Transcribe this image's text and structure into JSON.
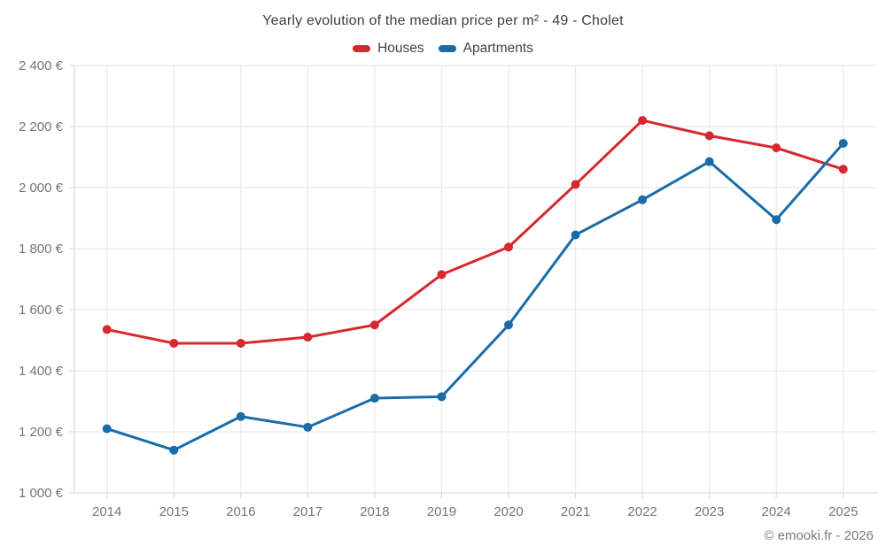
{
  "title": "Yearly evolution of the median price per m² - 49 - Cholet",
  "footer": "© emooki.fr - 2026",
  "colors": {
    "houses": "#d7282d",
    "apartments": "#1a6ca8",
    "grid": "#ebebeb",
    "axis": "#dcdcdc",
    "tick_label": "#757575",
    "title_text": "#3d3d3d",
    "footer_text": "#7a7a7a"
  },
  "chart_data": {
    "type": "line",
    "title": "Yearly evolution of the median price per m² - 49 - Cholet",
    "x_labels": [
      "2014",
      "2015",
      "2016",
      "2017",
      "2018",
      "2019",
      "2020",
      "2021",
      "2022",
      "2023",
      "2024",
      "2025"
    ],
    "series": [
      {
        "name": "Houses",
        "color": "#d7282d",
        "values": [
          1535,
          1490,
          1490,
          1510,
          1550,
          1715,
          1805,
          2010,
          2220,
          2170,
          2130,
          2060
        ]
      },
      {
        "name": "Apartments",
        "color": "#1a6ca8",
        "values": [
          1210,
          1140,
          1250,
          1215,
          1310,
          1315,
          1550,
          1845,
          1960,
          2085,
          1895,
          2145
        ]
      }
    ],
    "ylim": [
      1000,
      2400
    ],
    "ytick_values": [
      1000,
      1200,
      1400,
      1600,
      1800,
      2000,
      2200,
      2400
    ],
    "ytick_labels": [
      "1 000 €",
      "1 200 €",
      "1 400 €",
      "1 600 €",
      "1 800 €",
      "2 000 €",
      "2 200 €",
      "2 400 €"
    ],
    "grid": true,
    "legend_position": "top",
    "marker": "circle"
  }
}
